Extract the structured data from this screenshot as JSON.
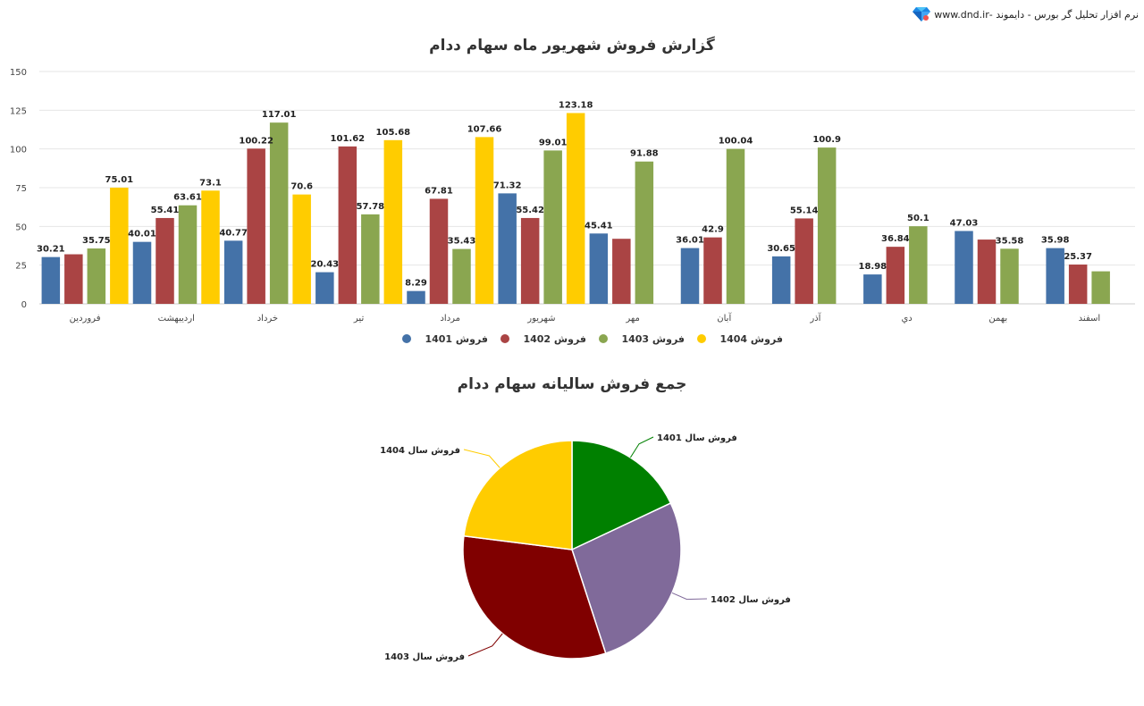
{
  "brand": {
    "text": "نرم افزار تحلیل گر بورس - دایموند -www.dnd.ir",
    "logo_icon": "diamond-icon",
    "logo_colors": [
      "#1e88e5",
      "#4fc3f7",
      "#ef5350"
    ]
  },
  "chart_data": [
    {
      "type": "bar",
      "title": "گزارش فروش شهریور ماه سهام ددام",
      "xlabel": "",
      "ylabel": "",
      "ylim": [
        0,
        150
      ],
      "yticks": [
        0,
        25,
        50,
        75,
        100,
        125,
        150
      ],
      "grid": true,
      "legend_position": "bottom",
      "categories": [
        "فروردین",
        "اردیبهشت",
        "خرداد",
        "تیر",
        "مرداد",
        "شهریور",
        "مهر",
        "آبان",
        "آذر",
        "دي",
        "بهمن",
        "اسفند"
      ],
      "series": [
        {
          "name": "فروش 1401",
          "color": "#4472a8",
          "values": [
            30.21,
            40.01,
            40.77,
            20.43,
            8.29,
            71.32,
            45.41,
            36.01,
            30.65,
            18.98,
            47.03,
            35.98
          ],
          "labels": [
            "30.21",
            "40.01",
            "40.77",
            "20.43",
            "8.29",
            "71.32",
            "45.41",
            "36.01",
            "30.65",
            "18.98",
            "47.03",
            "35.98"
          ]
        },
        {
          "name": "فروش 1402",
          "color": "#aa4444",
          "values": [
            32,
            55.41,
            100.22,
            101.62,
            67.81,
            55.42,
            42,
            42.9,
            55.14,
            36.84,
            41.5,
            25.37
          ],
          "labels": [
            "",
            "55.41",
            "100.22",
            "101.62",
            "67.81",
            "55.42",
            "",
            "42.9",
            "55.14",
            "36.84",
            "",
            "25.37"
          ]
        },
        {
          "name": "فروش 1403",
          "color": "#8aa650",
          "values": [
            35.75,
            63.61,
            117.01,
            57.78,
            35.43,
            99.01,
            91.88,
            100.04,
            100.9,
            50.1,
            35.58,
            21
          ],
          "labels": [
            "35.75",
            "63.61",
            "117.01",
            "57.78",
            "35.43",
            "99.01",
            "91.88",
            "100.04",
            "100.9",
            "50.1",
            "35.58",
            ""
          ]
        },
        {
          "name": "فروش 1404",
          "color": "#ffcc00",
          "values": [
            75.01,
            73.1,
            70.6,
            105.68,
            107.66,
            123.18,
            null,
            null,
            null,
            null,
            null,
            null
          ],
          "labels": [
            "75.01",
            "73.1",
            "70.6",
            "105.68",
            "107.66",
            "123.18",
            "",
            "",
            "",
            "",
            "",
            ""
          ]
        }
      ]
    },
    {
      "type": "pie",
      "title": "جمع فروش سالیانه سهام ددام",
      "slices": [
        {
          "name": "فروش سال 1401",
          "value": 18,
          "color": "#008000"
        },
        {
          "name": "فروش سال 1402",
          "value": 27,
          "color": "#806a9a"
        },
        {
          "name": "فروش سال 1403",
          "value": 32,
          "color": "#800000"
        },
        {
          "name": "فروش سال 1404",
          "value": 23,
          "color": "#ffcc00"
        }
      ]
    }
  ]
}
